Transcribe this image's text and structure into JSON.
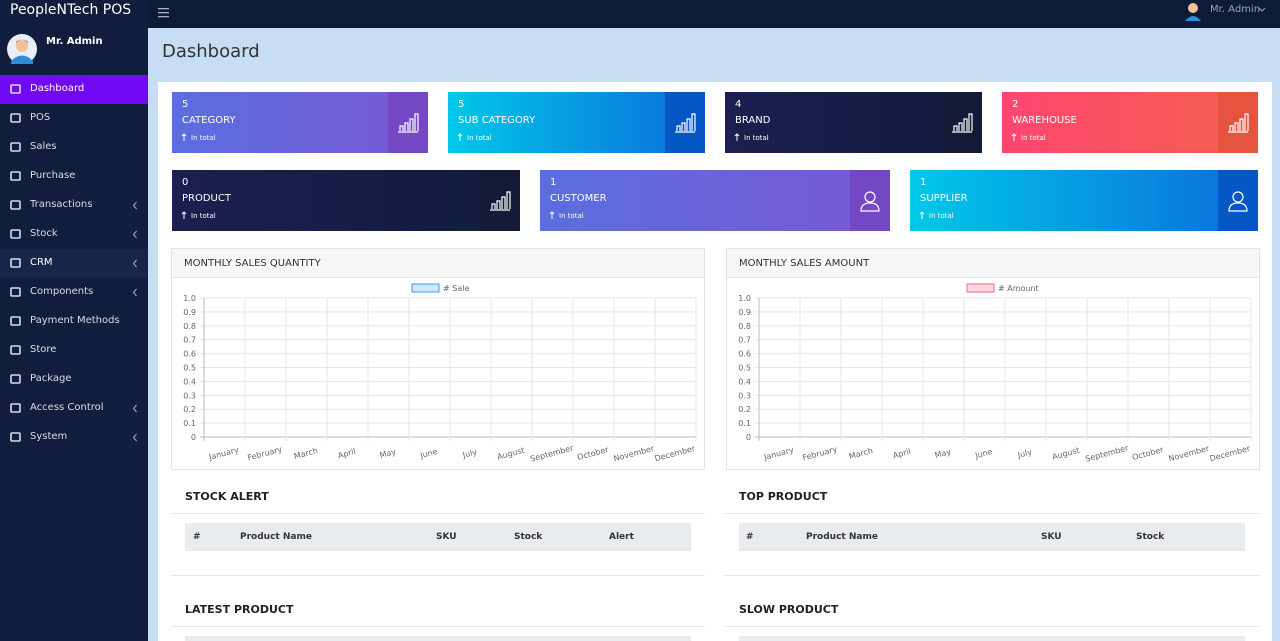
{
  "brand": "PeopleNTech POS",
  "sidebar_user": "Mr. Admin",
  "topbar_user": "Mr. Admin",
  "menu": [
    {
      "label": "Dashboard"
    },
    {
      "label": "POS"
    },
    {
      "label": "Sales"
    },
    {
      "label": "Purchase"
    },
    {
      "label": "Transactions"
    },
    {
      "label": "Stock"
    },
    {
      "label": "CRM"
    },
    {
      "label": "Components"
    },
    {
      "label": "Payment Methods"
    },
    {
      "label": "Store"
    },
    {
      "label": "Package"
    },
    {
      "label": "Access Control"
    },
    {
      "label": "System"
    }
  ],
  "page_title": "Dashboard",
  "cards": [
    {
      "value": 5,
      "label": "CATEGORY",
      "note": "In total"
    },
    {
      "value": 5,
      "label": "SUB CATEGORY",
      "note": "In total"
    },
    {
      "value": 4,
      "label": "BRAND",
      "note": "In total"
    },
    {
      "value": 2,
      "label": "WAREHOUSE",
      "note": "In total"
    },
    {
      "value": 0,
      "label": "PRODUCT",
      "note": "In total"
    },
    {
      "value": 1,
      "label": "CUSTOMER",
      "note": "In total"
    },
    {
      "value": 1,
      "label": "SUPPLIER",
      "note": "In total"
    }
  ],
  "charts": [
    {
      "type": "line",
      "title": "MONTHLY SALES QUANTITY",
      "series": [
        {
          "name": "# Sale",
          "color": "#36a2eb"
        }
      ],
      "categories": [
        "January",
        "February",
        "March",
        "April",
        "May",
        "June",
        "July",
        "August",
        "September",
        "October",
        "November",
        "December"
      ],
      "ylim": [
        0,
        1
      ],
      "yticks": [
        0,
        0.1,
        0.2,
        0.3,
        0.4,
        0.5,
        0.6,
        0.7,
        0.8,
        0.9,
        {
          "value": 1,
          "label": "1.0"
        }
      ],
      "grid": true
    },
    {
      "type": "line",
      "title": "MONTHLY SALES AMOUNT",
      "series": [
        {
          "name": "# Amount",
          "color": "#ff6384"
        }
      ],
      "categories": [
        "January",
        "February",
        "March",
        "April",
        "May",
        "June",
        "July",
        "August",
        "September",
        "October",
        "November",
        "December"
      ],
      "ylim": [
        0,
        1
      ],
      "yticks": [
        0,
        0.1,
        0.2,
        0.3,
        0.4,
        0.5,
        0.6,
        0.7,
        0.8,
        0.9,
        {
          "value": 1,
          "label": "1.0"
        }
      ],
      "grid": true
    }
  ],
  "tables": [
    {
      "title": "STOCK ALERT",
      "columns": [
        "#",
        "Product Name",
        "SKU",
        "Stock",
        "Alert"
      ]
    },
    {
      "title": "TOP PRODUCT",
      "columns": [
        "#",
        "Product Name",
        "SKU",
        "Stock"
      ]
    },
    {
      "title": "LATEST PRODUCT"
    },
    {
      "title": "SLOW PRODUCT"
    }
  ]
}
